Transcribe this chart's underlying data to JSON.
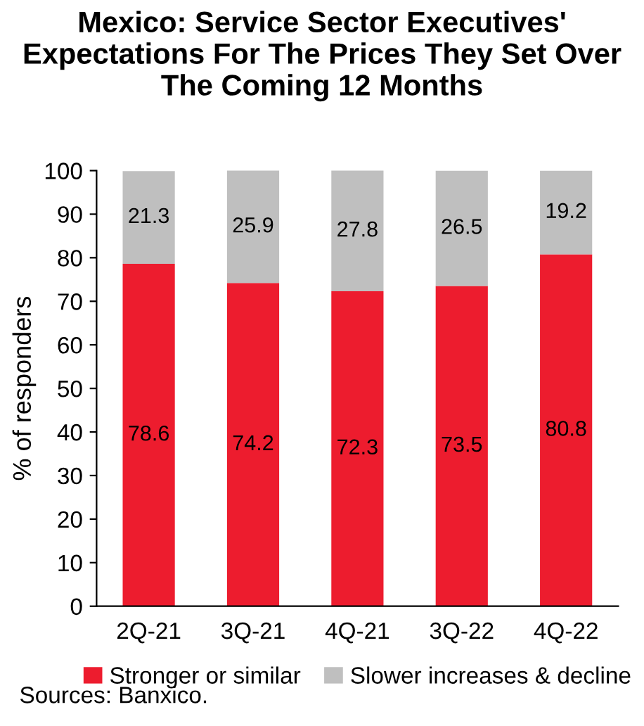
{
  "chart_data": {
    "type": "bar",
    "title": "Mexico: Service Sector Executives' Expectations For The Prices They Set Over The Coming 12 Months",
    "ylabel": "% of responders",
    "categories": [
      "2Q-21",
      "3Q-21",
      "4Q-21",
      "3Q-22",
      "4Q-22"
    ],
    "series": [
      {
        "name": "Stronger or similar",
        "color": "#ed1c2e",
        "values": [
          78.6,
          74.2,
          72.3,
          73.5,
          80.8
        ]
      },
      {
        "name": "Slower increases & decline",
        "color": "#bfbfbf",
        "values": [
          21.3,
          25.9,
          27.8,
          26.5,
          19.2
        ]
      }
    ],
    "stacked": true,
    "data_labels": true,
    "ylim": [
      0,
      100
    ],
    "yticks": [
      0,
      10,
      20,
      30,
      40,
      50,
      60,
      70,
      80,
      90,
      100
    ],
    "grid": false,
    "legend": "bottom",
    "annotations": [
      "Sources: Banxico."
    ]
  }
}
